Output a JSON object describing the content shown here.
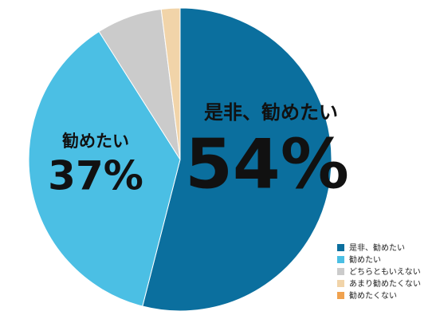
{
  "chart_data": {
    "type": "pie",
    "categories": [
      "是非、勧めたい",
      "勧めたい",
      "どちらともいえない",
      "あまり勧めたくない",
      "勧めたくない"
    ],
    "values": [
      54,
      37,
      7,
      2,
      0
    ],
    "value_labels": [
      "54%",
      "37%",
      null,
      null,
      null
    ],
    "colors": [
      "#0b6f9e",
      "#4bbfe4",
      "#cbcbcb",
      "#f1d4a9",
      "#f0a24f"
    ],
    "legend": "bottom-right"
  }
}
